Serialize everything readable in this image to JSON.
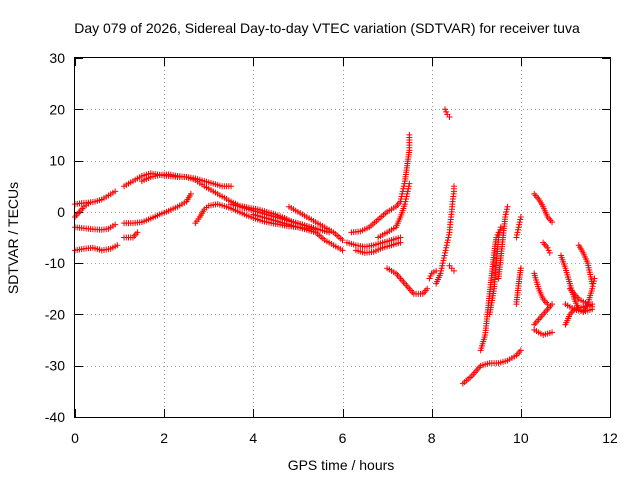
{
  "chart_data": {
    "type": "scatter",
    "title": "Day 079 of 2026, Sidereal Day-to-day VTEC variation (SDTVAR) for receiver tuva",
    "xlabel": "GPS time / hours",
    "ylabel": "SDTVAR / TECUs",
    "xlim": [
      0,
      12
    ],
    "ylim": [
      -40,
      30
    ],
    "xticks": [
      0,
      2,
      4,
      6,
      8,
      10,
      12
    ],
    "yticks": [
      -40,
      -30,
      -20,
      -10,
      0,
      10,
      20,
      30
    ],
    "grid": true,
    "marker": "+",
    "series": [
      {
        "name": "s1",
        "color": "#ff0000",
        "points": [
          [
            0.0,
            1.5
          ],
          [
            0.15,
            1.7
          ],
          [
            0.3,
            1.8
          ],
          [
            0.45,
            2.0
          ],
          [
            0.6,
            2.4
          ],
          [
            0.75,
            3.2
          ],
          [
            0.9,
            4.0
          ]
        ]
      },
      {
        "name": "s2",
        "color": "#ff0000",
        "points": [
          [
            0.0,
            -1.0
          ],
          [
            0.1,
            0.0
          ],
          [
            0.2,
            1.0
          ],
          [
            0.3,
            1.6
          ]
        ]
      },
      {
        "name": "s3",
        "color": "#ff0000",
        "points": [
          [
            0.0,
            -3.0
          ],
          [
            0.2,
            -3.2
          ],
          [
            0.4,
            -3.4
          ],
          [
            0.6,
            -3.5
          ],
          [
            0.75,
            -3.3
          ],
          [
            0.9,
            -2.5
          ]
        ]
      },
      {
        "name": "s4",
        "color": "#ff0000",
        "points": [
          [
            0.0,
            -7.5
          ],
          [
            0.2,
            -7.2
          ],
          [
            0.4,
            -7.0
          ],
          [
            0.6,
            -7.5
          ],
          [
            0.8,
            -7.2
          ],
          [
            0.95,
            -6.5
          ]
        ]
      },
      {
        "name": "s5",
        "color": "#ff0000",
        "points": [
          [
            1.1,
            5.0
          ],
          [
            1.3,
            6.0
          ],
          [
            1.5,
            7.0
          ],
          [
            1.7,
            7.5
          ],
          [
            1.9,
            7.2
          ],
          [
            2.1,
            7.0
          ],
          [
            2.3,
            6.8
          ],
          [
            2.5,
            6.8
          ],
          [
            2.7,
            6.5
          ],
          [
            2.9,
            6.0
          ],
          [
            3.1,
            5.5
          ],
          [
            3.3,
            5.0
          ],
          [
            3.5,
            5.0
          ]
        ]
      },
      {
        "name": "s6",
        "color": "#ff0000",
        "points": [
          [
            1.1,
            -2.2
          ],
          [
            1.3,
            -2.2
          ],
          [
            1.5,
            -2.0
          ],
          [
            1.7,
            -1.3
          ],
          [
            1.9,
            -0.5
          ],
          [
            2.1,
            0.2
          ],
          [
            2.3,
            1.0
          ],
          [
            2.5,
            2.0
          ],
          [
            2.6,
            3.5
          ]
        ]
      },
      {
        "name": "s7",
        "color": "#ff0000",
        "points": [
          [
            1.1,
            -5.0
          ],
          [
            1.3,
            -5.0
          ],
          [
            1.4,
            -4.0
          ]
        ]
      },
      {
        "name": "s8",
        "color": "#ff0000",
        "points": [
          [
            1.5,
            6.0
          ],
          [
            1.7,
            6.8
          ],
          [
            1.9,
            7.2
          ],
          [
            2.1,
            7.3
          ],
          [
            2.3,
            7.0
          ],
          [
            2.5,
            6.8
          ],
          [
            2.7,
            6.2
          ],
          [
            2.9,
            5.0
          ],
          [
            3.1,
            4.0
          ],
          [
            3.3,
            3.0
          ],
          [
            3.5,
            2.0
          ],
          [
            3.7,
            1.2
          ],
          [
            3.9,
            0.8
          ],
          [
            4.1,
            0.5
          ],
          [
            4.3,
            0.0
          ],
          [
            4.5,
            -0.5
          ],
          [
            4.7,
            -1.2
          ],
          [
            4.9,
            -2.0
          ],
          [
            5.1,
            -2.5
          ],
          [
            5.3,
            -3.0
          ]
        ]
      },
      {
        "name": "s9",
        "color": "#ff0000",
        "points": [
          [
            2.7,
            -2.2
          ],
          [
            2.8,
            -1.0
          ],
          [
            2.9,
            0.5
          ],
          [
            3.0,
            1.2
          ],
          [
            3.2,
            1.5
          ],
          [
            3.4,
            1.0
          ],
          [
            3.6,
            0.3
          ],
          [
            3.8,
            -0.5
          ],
          [
            4.0,
            -1.2
          ],
          [
            4.2,
            -1.8
          ],
          [
            4.4,
            -2.2
          ],
          [
            4.6,
            -2.5
          ],
          [
            4.8,
            -2.8
          ],
          [
            5.0,
            -3.0
          ],
          [
            5.2,
            -3.2
          ],
          [
            5.4,
            -3.5
          ]
        ]
      },
      {
        "name": "s10",
        "color": "#ff0000",
        "points": [
          [
            3.5,
            1.5
          ],
          [
            3.7,
            1.0
          ],
          [
            3.9,
            0.5
          ],
          [
            4.1,
            0.0
          ],
          [
            4.3,
            -0.5
          ],
          [
            4.5,
            -1.0
          ],
          [
            4.7,
            -1.5
          ],
          [
            4.9,
            -2.0
          ],
          [
            5.1,
            -2.5
          ],
          [
            5.3,
            -3.0
          ],
          [
            5.5,
            -3.5
          ],
          [
            5.7,
            -4.0
          ]
        ]
      },
      {
        "name": "s11",
        "color": "#ff0000",
        "points": [
          [
            4.0,
            -0.5
          ],
          [
            4.2,
            -1.0
          ],
          [
            4.4,
            -1.5
          ],
          [
            4.6,
            -2.0
          ],
          [
            4.8,
            -2.5
          ],
          [
            5.0,
            -3.0
          ],
          [
            5.2,
            -3.5
          ],
          [
            5.4,
            -4.0
          ],
          [
            5.6,
            -5.5
          ],
          [
            5.8,
            -6.5
          ],
          [
            6.0,
            -7.5
          ]
        ]
      },
      {
        "name": "s12",
        "color": "#ff0000",
        "points": [
          [
            4.8,
            1.0
          ],
          [
            5.0,
            0.0
          ],
          [
            5.2,
            -1.0
          ],
          [
            5.4,
            -2.0
          ],
          [
            5.6,
            -3.0
          ],
          [
            5.8,
            -4.0
          ],
          [
            6.0,
            -5.5
          ]
        ]
      },
      {
        "name": "s13",
        "color": "#ff0000",
        "points": [
          [
            6.1,
            -6.0
          ],
          [
            6.3,
            -6.5
          ],
          [
            6.5,
            -6.8
          ],
          [
            6.7,
            -6.5
          ],
          [
            6.9,
            -6.0
          ],
          [
            7.1,
            -5.5
          ],
          [
            7.3,
            -5.0
          ]
        ]
      },
      {
        "name": "s14",
        "color": "#ff0000",
        "points": [
          [
            6.2,
            -4.0
          ],
          [
            6.4,
            -3.8
          ],
          [
            6.6,
            -3.0
          ],
          [
            6.8,
            -1.5
          ],
          [
            7.0,
            0.0
          ],
          [
            7.2,
            1.0
          ],
          [
            7.3,
            2.0
          ],
          [
            7.35,
            4.0
          ],
          [
            7.4,
            6.0
          ],
          [
            7.45,
            9.0
          ],
          [
            7.5,
            12.0
          ],
          [
            7.5,
            15.0
          ]
        ]
      },
      {
        "name": "s15",
        "color": "#ff0000",
        "points": [
          [
            6.3,
            -7.5
          ],
          [
            6.5,
            -8.0
          ],
          [
            6.7,
            -7.8
          ],
          [
            6.9,
            -7.0
          ],
          [
            7.1,
            -6.5
          ],
          [
            7.3,
            -6.0
          ]
        ]
      },
      {
        "name": "s16",
        "color": "#ff0000",
        "points": [
          [
            6.8,
            -5.0
          ],
          [
            7.0,
            -4.0
          ],
          [
            7.2,
            -3.0
          ],
          [
            7.3,
            -1.0
          ],
          [
            7.4,
            1.5
          ],
          [
            7.45,
            3.5
          ],
          [
            7.5,
            5.5
          ]
        ]
      },
      {
        "name": "s17",
        "color": "#ff0000",
        "points": [
          [
            7.0,
            -11.0
          ],
          [
            7.2,
            -12.0
          ],
          [
            7.4,
            -14.0
          ],
          [
            7.6,
            -16.0
          ],
          [
            7.8,
            -16.0
          ],
          [
            7.9,
            -15.0
          ]
        ]
      },
      {
        "name": "s18",
        "color": "#ff0000",
        "points": [
          [
            7.95,
            -13.0
          ],
          [
            8.0,
            -12.0
          ],
          [
            8.1,
            -11.5
          ]
        ]
      },
      {
        "name": "s19",
        "color": "#ff0000",
        "points": [
          [
            8.3,
            20.0
          ],
          [
            8.35,
            19.0
          ],
          [
            8.4,
            18.5
          ]
        ]
      },
      {
        "name": "s20",
        "color": "#ff0000",
        "points": [
          [
            8.1,
            -14.0
          ],
          [
            8.2,
            -12.0
          ],
          [
            8.25,
            -10.0
          ],
          [
            8.3,
            -8.0
          ],
          [
            8.35,
            -6.0
          ],
          [
            8.4,
            -4.0
          ],
          [
            8.42,
            -2.0
          ],
          [
            8.45,
            0.0
          ],
          [
            8.47,
            2.0
          ],
          [
            8.5,
            4.0
          ],
          [
            8.5,
            5.0
          ]
        ]
      },
      {
        "name": "s21",
        "color": "#ff0000",
        "points": [
          [
            8.4,
            -10.5
          ],
          [
            8.45,
            -11.0
          ],
          [
            8.5,
            -11.5
          ]
        ]
      },
      {
        "name": "s22",
        "color": "#ff0000",
        "points": [
          [
            8.7,
            -33.5
          ],
          [
            8.9,
            -32.0
          ],
          [
            9.1,
            -30.0
          ],
          [
            9.3,
            -29.5
          ],
          [
            9.5,
            -29.5
          ],
          [
            9.7,
            -29.0
          ],
          [
            9.9,
            -28.0
          ],
          [
            10.0,
            -27.0
          ]
        ]
      },
      {
        "name": "s23",
        "color": "#ff0000",
        "points": [
          [
            9.1,
            -27.0
          ],
          [
            9.2,
            -24.0
          ],
          [
            9.25,
            -20.0
          ],
          [
            9.3,
            -16.0
          ],
          [
            9.35,
            -12.0
          ],
          [
            9.4,
            -8.0
          ],
          [
            9.45,
            -5.0
          ],
          [
            9.5,
            -4.0
          ]
        ]
      },
      {
        "name": "s24",
        "color": "#ff0000",
        "points": [
          [
            9.3,
            -20.0
          ],
          [
            9.4,
            -15.0
          ],
          [
            9.45,
            -10.0
          ],
          [
            9.5,
            -5.0
          ],
          [
            9.55,
            -3.0
          ]
        ]
      },
      {
        "name": "s25",
        "color": "#ff0000",
        "points": [
          [
            9.5,
            -13.0
          ],
          [
            9.55,
            -9.0
          ],
          [
            9.6,
            -5.0
          ],
          [
            9.65,
            -1.0
          ],
          [
            9.7,
            1.0
          ]
        ]
      },
      {
        "name": "s26",
        "color": "#ff0000",
        "points": [
          [
            9.9,
            -18.0
          ],
          [
            9.95,
            -14.0
          ],
          [
            10.0,
            -11.0
          ]
        ]
      },
      {
        "name": "s27",
        "color": "#ff0000",
        "points": [
          [
            9.9,
            -5.0
          ],
          [
            9.95,
            -3.0
          ],
          [
            10.0,
            -1.0
          ]
        ]
      },
      {
        "name": "s28",
        "color": "#ff0000",
        "points": [
          [
            10.3,
            3.5
          ],
          [
            10.4,
            2.5
          ],
          [
            10.5,
            1.0
          ],
          [
            10.6,
            -1.0
          ],
          [
            10.7,
            -2.0
          ]
        ]
      },
      {
        "name": "s29",
        "color": "#ff0000",
        "points": [
          [
            10.3,
            -12.0
          ],
          [
            10.4,
            -15.0
          ],
          [
            10.5,
            -17.0
          ],
          [
            10.6,
            -18.0
          ]
        ]
      },
      {
        "name": "s30",
        "color": "#ff0000",
        "points": [
          [
            10.5,
            -6.0
          ],
          [
            10.6,
            -7.0
          ],
          [
            10.65,
            -8.0
          ]
        ]
      },
      {
        "name": "s31",
        "color": "#ff0000",
        "points": [
          [
            10.3,
            -23.0
          ],
          [
            10.5,
            -24.0
          ],
          [
            10.7,
            -23.5
          ]
        ]
      },
      {
        "name": "s32",
        "color": "#ff0000",
        "points": [
          [
            10.3,
            -22.0
          ],
          [
            10.5,
            -20.0
          ],
          [
            10.7,
            -18.0
          ]
        ]
      },
      {
        "name": "s33",
        "color": "#ff0000",
        "points": [
          [
            10.9,
            -8.5
          ],
          [
            11.0,
            -11.0
          ],
          [
            11.1,
            -14.0
          ],
          [
            11.2,
            -17.0
          ],
          [
            11.3,
            -19.0
          ],
          [
            11.4,
            -19.5
          ],
          [
            11.5,
            -18.0
          ],
          [
            11.6,
            -15.0
          ],
          [
            11.65,
            -13.0
          ]
        ]
      },
      {
        "name": "s34",
        "color": "#ff0000",
        "points": [
          [
            11.0,
            -22.0
          ],
          [
            11.1,
            -20.0
          ],
          [
            11.2,
            -19.0
          ],
          [
            11.4,
            -18.5
          ],
          [
            11.6,
            -18.0
          ]
        ]
      },
      {
        "name": "s35",
        "color": "#ff0000",
        "points": [
          [
            11.0,
            -18.0
          ],
          [
            11.2,
            -19.0
          ],
          [
            11.4,
            -19.5
          ],
          [
            11.6,
            -19.0
          ]
        ]
      },
      {
        "name": "s36",
        "color": "#ff0000",
        "points": [
          [
            11.3,
            -6.5
          ],
          [
            11.4,
            -8.0
          ],
          [
            11.5,
            -10.0
          ],
          [
            11.6,
            -14.0
          ]
        ]
      },
      {
        "name": "s37",
        "color": "#ff0000",
        "points": [
          [
            11.1,
            -15.0
          ],
          [
            11.3,
            -17.0
          ],
          [
            11.5,
            -18.0
          ],
          [
            11.6,
            -18.5
          ]
        ]
      }
    ]
  }
}
